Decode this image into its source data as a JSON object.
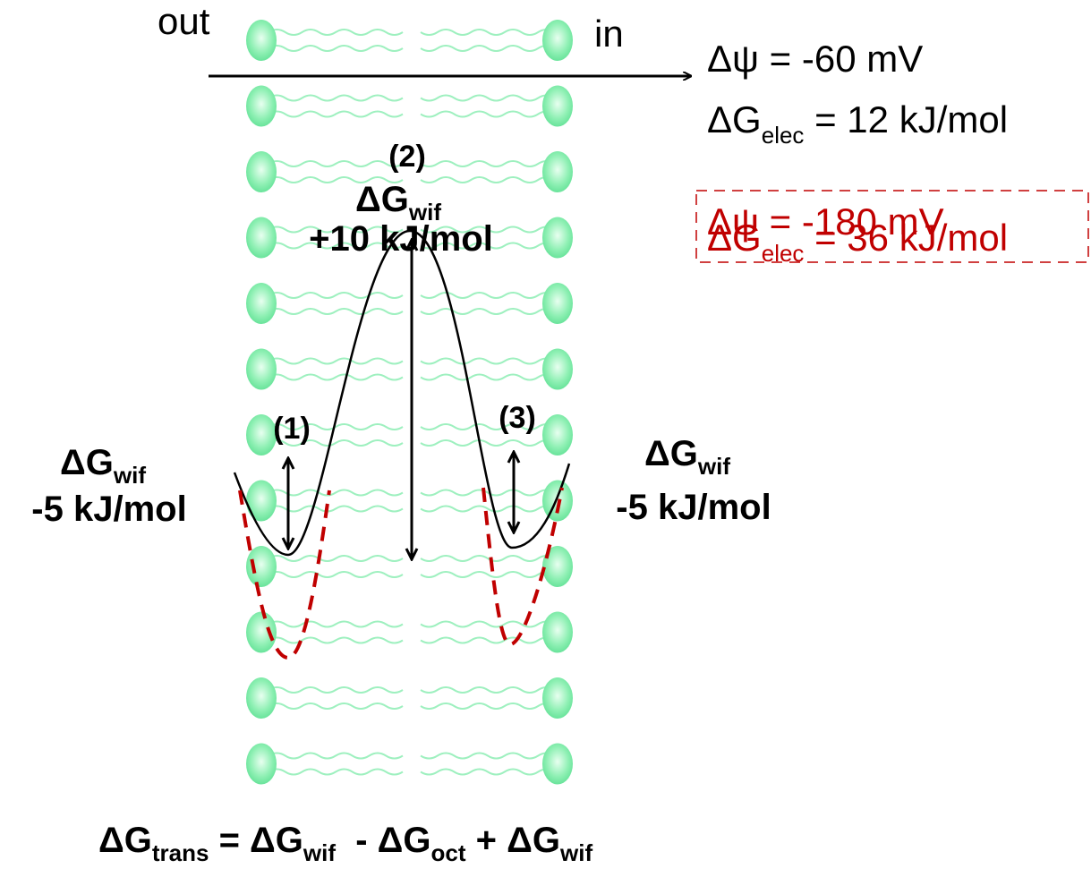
{
  "membrane": {
    "out": "out",
    "in": "in"
  },
  "potential_normal": {
    "psi": "Δψ = -60 mV",
    "g": "ΔG",
    "g_sub": "elec",
    "g_rest": " = 12 kJ/mol"
  },
  "potential_high": {
    "psi": "Δψ = -180 mV",
    "g": "ΔG",
    "g_sub": "elec",
    "g_rest": " = 36 kJ/mol"
  },
  "step_2": {
    "label": "(2)",
    "g": "ΔG",
    "g_sub": "wif",
    "energy": "+10 kJ/mol"
  },
  "step_1": {
    "label": "(1)",
    "g": "ΔG",
    "g_sub": "wif",
    "energy": "-5 kJ/mol"
  },
  "step_3": {
    "label": "(3)",
    "g": "ΔG",
    "g_sub": "wif",
    "energy": "-5 kJ/mol"
  },
  "equation": {
    "parts": [
      "ΔG",
      "trans",
      " = ΔG",
      "wif",
      "  - ΔG",
      "oct",
      " + ΔG",
      "wif"
    ]
  }
}
